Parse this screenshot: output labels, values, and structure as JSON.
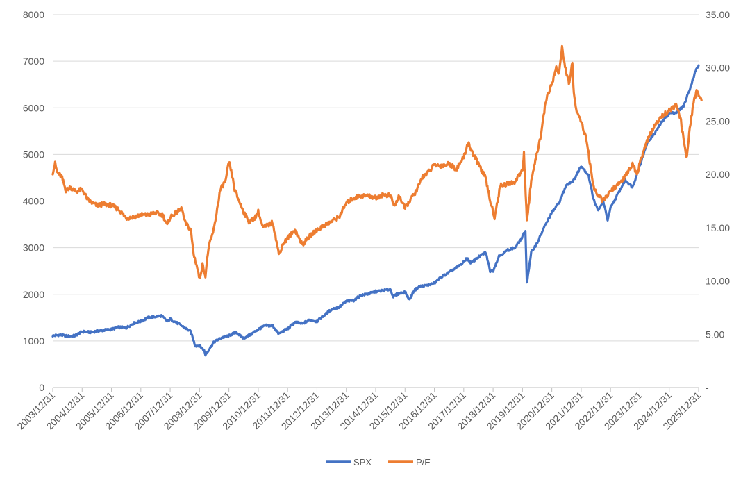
{
  "chart_data": {
    "type": "line",
    "title": "",
    "xlabel": "",
    "ylabel": "",
    "y2label": "",
    "x_tick_labels": [
      "2003/12/31",
      "2004/12/31",
      "2005/12/31",
      "2006/12/31",
      "2007/12/31",
      "2008/12/31",
      "2009/12/31",
      "2010/12/31",
      "2011/12/31",
      "2012/12/31",
      "2013/12/31",
      "2014/12/31",
      "2015/12/31",
      "2016/12/31",
      "2017/12/31",
      "2018/12/31",
      "2019/12/31",
      "2020/12/31",
      "2021/12/31",
      "2022/12/31",
      "2023/12/31",
      "2024/12/31",
      "2025/12/31"
    ],
    "y_left": {
      "ylim": [
        0,
        8000
      ],
      "ticks": [
        "0",
        "1000",
        "2000",
        "3000",
        "4000",
        "5000",
        "6000",
        "7000",
        "8000"
      ]
    },
    "y_right": {
      "ylim": [
        0,
        35
      ],
      "ticks": [
        "-",
        "5.00",
        "10.00",
        "15.00",
        "20.00",
        "25.00",
        "30.00",
        "35.00"
      ]
    },
    "grid": true,
    "legend": {
      "placement": "bottom",
      "entries": [
        "SPX",
        "P/E"
      ]
    },
    "series": [
      {
        "name": "SPX",
        "axis": "left",
        "color": "#4472C4",
        "points": [
          [
            0,
            1110
          ],
          [
            0.25,
            1130
          ],
          [
            0.5,
            1100
          ],
          [
            0.75,
            1110
          ],
          [
            1,
            1200
          ],
          [
            1.3,
            1185
          ],
          [
            1.5,
            1210
          ],
          [
            1.75,
            1230
          ],
          [
            2,
            1250
          ],
          [
            2.25,
            1295
          ],
          [
            2.5,
            1280
          ],
          [
            2.75,
            1380
          ],
          [
            3,
            1420
          ],
          [
            3.25,
            1500
          ],
          [
            3.5,
            1520
          ],
          [
            3.7,
            1540
          ],
          [
            3.9,
            1420
          ],
          [
            4,
            1470
          ],
          [
            4.25,
            1380
          ],
          [
            4.5,
            1280
          ],
          [
            4.7,
            1200
          ],
          [
            4.85,
            900
          ],
          [
            5,
            900
          ],
          [
            5.15,
            800
          ],
          [
            5.2,
            700
          ],
          [
            5.3,
            800
          ],
          [
            5.5,
            980
          ],
          [
            5.75,
            1070
          ],
          [
            6,
            1110
          ],
          [
            6.25,
            1190
          ],
          [
            6.4,
            1100
          ],
          [
            6.5,
            1060
          ],
          [
            6.75,
            1140
          ],
          [
            7,
            1250
          ],
          [
            7.25,
            1330
          ],
          [
            7.5,
            1320
          ],
          [
            7.7,
            1150
          ],
          [
            7.9,
            1230
          ],
          [
            8,
            1260
          ],
          [
            8.25,
            1400
          ],
          [
            8.5,
            1370
          ],
          [
            8.75,
            1450
          ],
          [
            9,
            1420
          ],
          [
            9.25,
            1550
          ],
          [
            9.5,
            1680
          ],
          [
            9.75,
            1720
          ],
          [
            10,
            1850
          ],
          [
            10.25,
            1870
          ],
          [
            10.5,
            1980
          ],
          [
            10.75,
            2010
          ],
          [
            11,
            2060
          ],
          [
            11.25,
            2080
          ],
          [
            11.5,
            2110
          ],
          [
            11.6,
            1950
          ],
          [
            11.75,
            2010
          ],
          [
            12,
            2050
          ],
          [
            12.15,
            1880
          ],
          [
            12.3,
            2080
          ],
          [
            12.5,
            2170
          ],
          [
            12.75,
            2190
          ],
          [
            13,
            2240
          ],
          [
            13.25,
            2380
          ],
          [
            13.5,
            2470
          ],
          [
            13.75,
            2570
          ],
          [
            14,
            2690
          ],
          [
            14.1,
            2780
          ],
          [
            14.25,
            2670
          ],
          [
            14.5,
            2800
          ],
          [
            14.75,
            2900
          ],
          [
            14.9,
            2500
          ],
          [
            15,
            2510
          ],
          [
            15.2,
            2820
          ],
          [
            15.5,
            2950
          ],
          [
            15.75,
            3000
          ],
          [
            16,
            3230
          ],
          [
            16.1,
            3380
          ],
          [
            16.15,
            2250
          ],
          [
            16.3,
            2900
          ],
          [
            16.5,
            3100
          ],
          [
            16.75,
            3450
          ],
          [
            17,
            3750
          ],
          [
            17.25,
            3970
          ],
          [
            17.5,
            4350
          ],
          [
            17.75,
            4450
          ],
          [
            18,
            4760
          ],
          [
            18.25,
            4550
          ],
          [
            18.4,
            4100
          ],
          [
            18.5,
            3900
          ],
          [
            18.6,
            3800
          ],
          [
            18.75,
            4000
          ],
          [
            18.9,
            3600
          ],
          [
            19,
            3850
          ],
          [
            19.25,
            4150
          ],
          [
            19.5,
            4450
          ],
          [
            19.75,
            4300
          ],
          [
            20,
            4770
          ],
          [
            20.25,
            5250
          ],
          [
            20.5,
            5450
          ],
          [
            20.75,
            5700
          ],
          [
            21,
            5880
          ],
          [
            21.25,
            5900
          ],
          [
            21.5,
            6050
          ],
          [
            21.75,
            6500
          ],
          [
            21.9,
            6800
          ],
          [
            22,
            6900
          ]
        ]
      },
      {
        "name": "P/E",
        "axis": "right",
        "color": "#ED7D31",
        "points": [
          [
            0,
            20.2
          ],
          [
            0.08,
            21
          ],
          [
            0.15,
            20.2
          ],
          [
            0.3,
            19.8
          ],
          [
            0.45,
            18.5
          ],
          [
            0.6,
            18.8
          ],
          [
            0.8,
            18.4
          ],
          [
            1,
            18.6
          ],
          [
            1.2,
            17.6
          ],
          [
            1.35,
            17.3
          ],
          [
            1.5,
            17.1
          ],
          [
            1.75,
            17.2
          ],
          [
            2,
            17.1
          ],
          [
            2.25,
            16.7
          ],
          [
            2.5,
            15.9
          ],
          [
            2.75,
            16.0
          ],
          [
            3,
            16.2
          ],
          [
            3.25,
            16.2
          ],
          [
            3.5,
            16.4
          ],
          [
            3.75,
            16.2
          ],
          [
            3.9,
            15.2
          ],
          [
            4,
            16.0
          ],
          [
            4.2,
            16.4
          ],
          [
            4.4,
            16.8
          ],
          [
            4.5,
            15.5
          ],
          [
            4.7,
            14.8
          ],
          [
            4.8,
            12.5
          ],
          [
            4.9,
            11.5
          ],
          [
            5,
            10.2
          ],
          [
            5.1,
            11.5
          ],
          [
            5.2,
            10.5
          ],
          [
            5.3,
            13.0
          ],
          [
            5.5,
            15.0
          ],
          [
            5.7,
            18.5
          ],
          [
            5.9,
            19.5
          ],
          [
            6,
            21.2
          ],
          [
            6.1,
            20.0
          ],
          [
            6.2,
            18.5
          ],
          [
            6.35,
            17.5
          ],
          [
            6.5,
            16.5
          ],
          [
            6.7,
            15.5
          ],
          [
            6.9,
            16.0
          ],
          [
            7,
            16.5
          ],
          [
            7.15,
            15.0
          ],
          [
            7.3,
            15.2
          ],
          [
            7.5,
            15.5
          ],
          [
            7.7,
            12.5
          ],
          [
            7.85,
            13.5
          ],
          [
            8,
            14.0
          ],
          [
            8.25,
            14.8
          ],
          [
            8.5,
            13.4
          ],
          [
            8.75,
            14.2
          ],
          [
            9,
            14.8
          ],
          [
            9.25,
            15.2
          ],
          [
            9.5,
            15.6
          ],
          [
            9.75,
            16.0
          ],
          [
            10,
            17.3
          ],
          [
            10.25,
            17.8
          ],
          [
            10.5,
            18.0
          ],
          [
            10.75,
            18.0
          ],
          [
            11,
            17.8
          ],
          [
            11.25,
            18.1
          ],
          [
            11.5,
            18.0
          ],
          [
            11.65,
            17.0
          ],
          [
            11.8,
            18.0
          ],
          [
            12,
            16.8
          ],
          [
            12.15,
            17.5
          ],
          [
            12.4,
            18.5
          ],
          [
            12.6,
            19.8
          ],
          [
            12.8,
            20.2
          ],
          [
            13,
            20.9
          ],
          [
            13.25,
            20.8
          ],
          [
            13.5,
            21.0
          ],
          [
            13.75,
            20.5
          ],
          [
            14,
            21.6
          ],
          [
            14.15,
            23.0
          ],
          [
            14.3,
            22.0
          ],
          [
            14.5,
            21.0
          ],
          [
            14.75,
            19.6
          ],
          [
            14.9,
            17.5
          ],
          [
            15.05,
            16.0
          ],
          [
            15.25,
            19.0
          ],
          [
            15.5,
            19.1
          ],
          [
            15.75,
            19.3
          ],
          [
            16,
            20.5
          ],
          [
            16.05,
            22.0
          ],
          [
            16.15,
            15.5
          ],
          [
            16.3,
            19.5
          ],
          [
            16.5,
            22.0
          ],
          [
            16.65,
            24.0
          ],
          [
            16.8,
            27.0
          ],
          [
            17,
            28.5
          ],
          [
            17.15,
            30.0
          ],
          [
            17.25,
            29.5
          ],
          [
            17.35,
            32.0
          ],
          [
            17.45,
            30.0
          ],
          [
            17.6,
            28.5
          ],
          [
            17.7,
            30.5
          ],
          [
            17.75,
            27.5
          ],
          [
            17.85,
            26.0
          ],
          [
            18,
            25.0
          ],
          [
            18.15,
            23.5
          ],
          [
            18.25,
            22.0
          ],
          [
            18.35,
            20.0
          ],
          [
            18.45,
            18.5
          ],
          [
            18.6,
            18.0
          ],
          [
            18.75,
            17.5
          ],
          [
            18.9,
            18.0
          ],
          [
            19,
            18.5
          ],
          [
            19.25,
            19.0
          ],
          [
            19.5,
            19.8
          ],
          [
            19.75,
            21.0
          ],
          [
            19.9,
            20.0
          ],
          [
            20.1,
            22.0
          ],
          [
            20.3,
            23.5
          ],
          [
            20.5,
            24.5
          ],
          [
            20.75,
            25.5
          ],
          [
            21,
            26.0
          ],
          [
            21.25,
            26.5
          ],
          [
            21.4,
            25.0
          ],
          [
            21.5,
            23.0
          ],
          [
            21.6,
            21.5
          ],
          [
            21.7,
            24.5
          ],
          [
            21.85,
            27.0
          ],
          [
            21.95,
            28.0
          ],
          [
            22,
            27.5
          ],
          [
            22.1,
            27.0
          ]
        ]
      }
    ]
  }
}
